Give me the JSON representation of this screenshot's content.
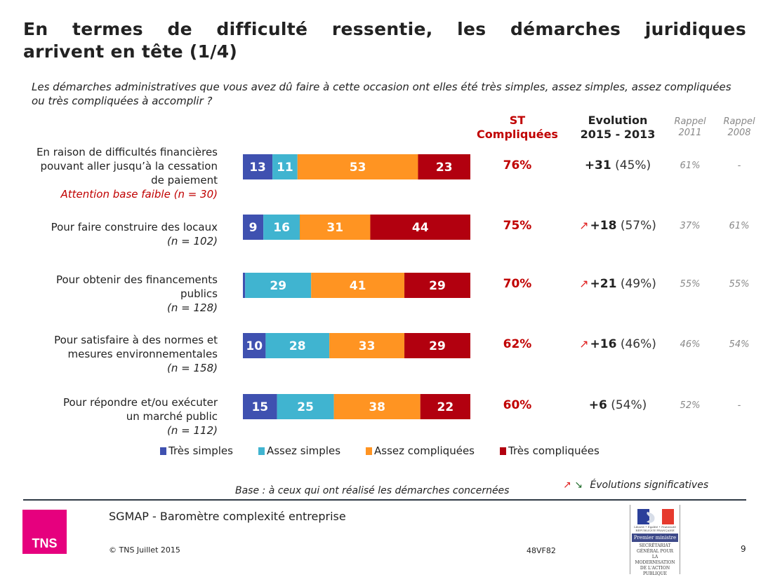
{
  "title": {
    "line1": "En termes de difficulté ressentie, les démarches juridiques",
    "line2": "arrivent en tête (1/4)"
  },
  "question": "Les démarches administratives que vous avez dû faire à cette occasion ont elles été très simples, assez simples, assez compliquées ou très compliquées à accomplir ?",
  "columns": {
    "st_line1": "ST",
    "st_line2": "Compliquées",
    "evo_line1": "Evolution",
    "evo_line2": "2015 - 2013",
    "r2011_line1": "Rappel",
    "r2011_line2": "2011",
    "r2008_line1": "Rappel",
    "r2008_line2": "2008"
  },
  "colors": {
    "tres_simples": "#3f51b0",
    "assez_simples": "#40b4d0",
    "assez_compliquees": "#ff9422",
    "tres_compliquees": "#b2000f",
    "accent_red": "#c00000",
    "up_arrow": "#e02020",
    "down_arrow": "#1f6b2a",
    "tns_pink": "#e6007e"
  },
  "rows": [
    {
      "label_lines": [
        "En raison de difficultés financières",
        "pouvant aller jusqu’à la cessation",
        "de paiement"
      ],
      "base": "Attention base faible (n = 30)",
      "base_warning": true,
      "st": "76%",
      "evo_arrow": "",
      "evo_delta": "+31",
      "evo_pct": "(45%)",
      "rappel_2011": "61%",
      "rappel_2008": "-"
    },
    {
      "label_lines": [
        "Pour faire construire des locaux"
      ],
      "base": "(n = 102)",
      "base_warning": false,
      "st": "75%",
      "evo_arrow": "↗",
      "evo_delta": "+18",
      "evo_pct": "(57%)",
      "rappel_2011": "37%",
      "rappel_2008": "61%"
    },
    {
      "label_lines": [
        "Pour obtenir des financements",
        "publics"
      ],
      "base": "(n = 128)",
      "base_warning": false,
      "st": "70%",
      "evo_arrow": "↗",
      "evo_delta": "+21",
      "evo_pct": "(49%)",
      "rappel_2011": "55%",
      "rappel_2008": "55%"
    },
    {
      "label_lines": [
        "Pour satisfaire à des normes et",
        "mesures environnementales"
      ],
      "base": "(n = 158)",
      "base_warning": false,
      "st": "62%",
      "evo_arrow": "↗",
      "evo_delta": "+16",
      "evo_pct": "(46%)",
      "rappel_2011": "46%",
      "rappel_2008": "54%"
    },
    {
      "label_lines": [
        "Pour répondre et/ou exécuter",
        "un marché public"
      ],
      "base": "(n = 112)",
      "base_warning": false,
      "st": "60%",
      "evo_arrow": "",
      "evo_delta": "+6",
      "evo_pct": "(54%)",
      "rappel_2011": "52%",
      "rappel_2008": "-"
    }
  ],
  "chart_data": {
    "type": "bar",
    "orientation": "horizontal",
    "stacked": true,
    "normalized_to": 100,
    "title": "Les démarches administratives que vous avez dû faire à cette occasion ont elles été très simples, assez simples, assez compliquées ou très compliquées à accomplir ?",
    "xlabel": "",
    "ylabel": "",
    "xlim": [
      0,
      100
    ],
    "grid": false,
    "legend_position": "bottom",
    "categories": [
      "En raison de difficultés financières pouvant aller jusqu’à la cessation de paiement",
      "Pour faire construire des locaux",
      "Pour obtenir des financements publics",
      "Pour satisfaire à des normes et mesures environnementales",
      "Pour répondre et/ou exécuter un marché public"
    ],
    "series": [
      {
        "name": "Très simples",
        "color": "#3f51b0",
        "values": [
          13,
          9,
          1,
          10,
          15
        ]
      },
      {
        "name": "Assez simples",
        "color": "#40b4d0",
        "values": [
          11,
          16,
          29,
          28,
          25
        ]
      },
      {
        "name": "Assez compliquées",
        "color": "#ff9422",
        "values": [
          53,
          31,
          41,
          33,
          38
        ]
      },
      {
        "name": "Très compliquées",
        "color": "#b2000f",
        "values": [
          23,
          44,
          29,
          29,
          22
        ]
      }
    ]
  },
  "legend": [
    {
      "label": "Très simples",
      "color": "#3f51b0"
    },
    {
      "label": "Assez simples",
      "color": "#40b4d0"
    },
    {
      "label": "Assez compliquées",
      "color": "#ff9422"
    },
    {
      "label": "Très compliquées",
      "color": "#b2000f"
    }
  ],
  "base_note": "Base : à ceux qui ont réalisé les démarches concernées",
  "significance_note": {
    "up_icon": "↗",
    "down_icon": "↘",
    "label": "Évolutions significatives"
  },
  "footer": {
    "logo_text": "TNS",
    "study_title": "SGMAP - Baromètre complexité entreprise",
    "copyright": "© TNS Juillet 2015",
    "code": "48VF82",
    "page_number": "9",
    "gov_logo": {
      "motto": "Liberté • Égalité • Fraternité",
      "republic": "RÉPUBLIQUE FRANÇAISE",
      "ministry": "Premier ministre",
      "org_lines": [
        "SECRÉTARIAT",
        "GÉNÉRAL POUR",
        "LA MODERNISATION",
        "DE L'ACTION",
        "PUBLIQUE"
      ]
    }
  }
}
